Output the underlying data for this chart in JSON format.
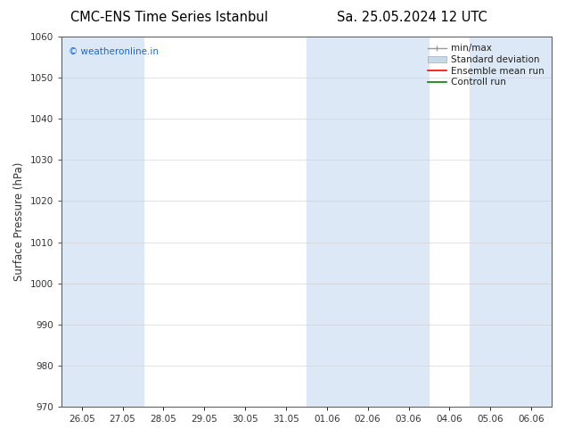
{
  "title_left": "CMC-ENS Time Series Istanbul",
  "title_right": "Sa. 25.05.2024 12 UTC",
  "ylabel": "Surface Pressure (hPa)",
  "ylim": [
    970,
    1060
  ],
  "yticks": [
    970,
    980,
    990,
    1000,
    1010,
    1020,
    1030,
    1040,
    1050,
    1060
  ],
  "xtick_labels": [
    "26.05",
    "27.05",
    "28.05",
    "29.05",
    "30.05",
    "31.05",
    "01.06",
    "02.06",
    "03.06",
    "04.06",
    "05.06",
    "06.06"
  ],
  "band_color": "#dce8f5",
  "watermark": "© weatheronline.in",
  "watermark_color": "#1a66cc",
  "legend_labels": [
    "min/max",
    "Standard deviation",
    "Ensemble mean run",
    "Controll run"
  ],
  "legend_colors": [
    "#aaaaaa",
    "#c8daea",
    "red",
    "green"
  ],
  "background_color": "#ffffff",
  "spine_color": "#555555",
  "tick_color": "#333333",
  "title_fontsize": 10.5,
  "ylabel_fontsize": 8.5,
  "tick_fontsize": 7.5,
  "legend_fontsize": 7.5,
  "watermark_fontsize": 7.5
}
